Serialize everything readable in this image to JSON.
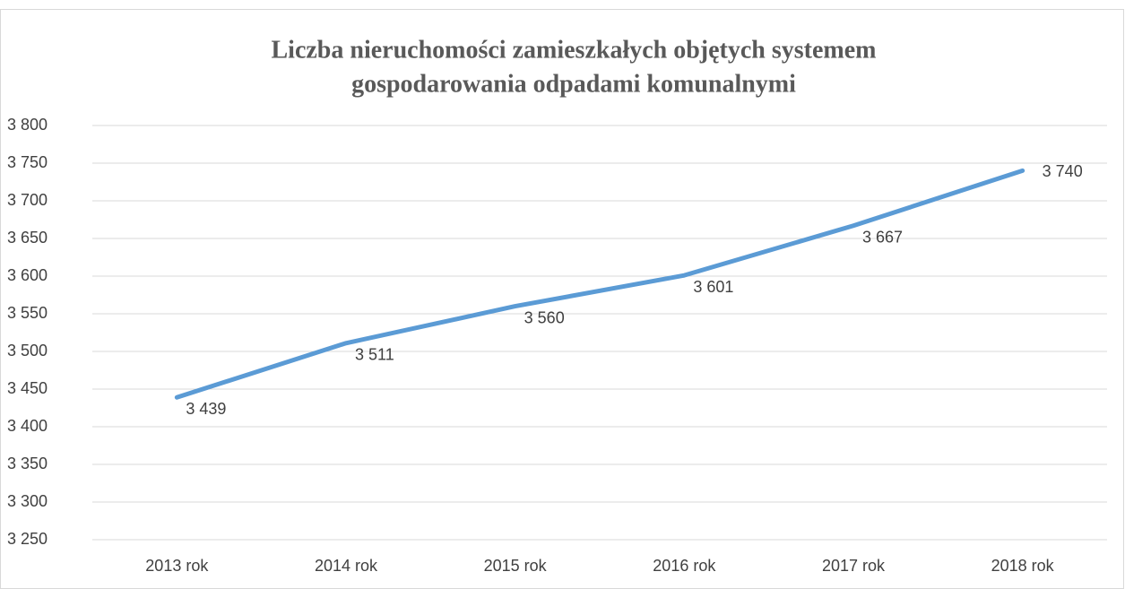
{
  "chart_data": {
    "type": "line",
    "title": [
      "Liczba nieruchomości zamieszkałych objętych systemem",
      "gospodarowania odpadami komunalnymi"
    ],
    "categories": [
      "2013 rok",
      "2014 rok",
      "2015 rok",
      "2016 rok",
      "2017 rok",
      "2018 rok"
    ],
    "series": [
      {
        "name": null,
        "color": "#5b9bd5",
        "values": [
          3439,
          3511,
          3560,
          3601,
          3667,
          3740
        ],
        "value_labels": [
          "3 439",
          "3 511",
          "3 560",
          "3 601",
          "3 667",
          "3 740"
        ]
      }
    ],
    "ylim": [
      3250,
      3800
    ],
    "yticks": [
      {
        "value": 3250,
        "label": "3 250"
      },
      {
        "value": 3300,
        "label": "3 300"
      },
      {
        "value": 3350,
        "label": "3 350"
      },
      {
        "value": 3400,
        "label": "3 400"
      },
      {
        "value": 3450,
        "label": "3 450"
      },
      {
        "value": 3500,
        "label": "3 500"
      },
      {
        "value": 3550,
        "label": "3 550"
      },
      {
        "value": 3600,
        "label": "3 600"
      },
      {
        "value": 3650,
        "label": "3 650"
      },
      {
        "value": 3700,
        "label": "3 700"
      },
      {
        "value": 3750,
        "label": "3 750"
      },
      {
        "value": 3800,
        "label": "3 800"
      }
    ],
    "grid": true
  }
}
